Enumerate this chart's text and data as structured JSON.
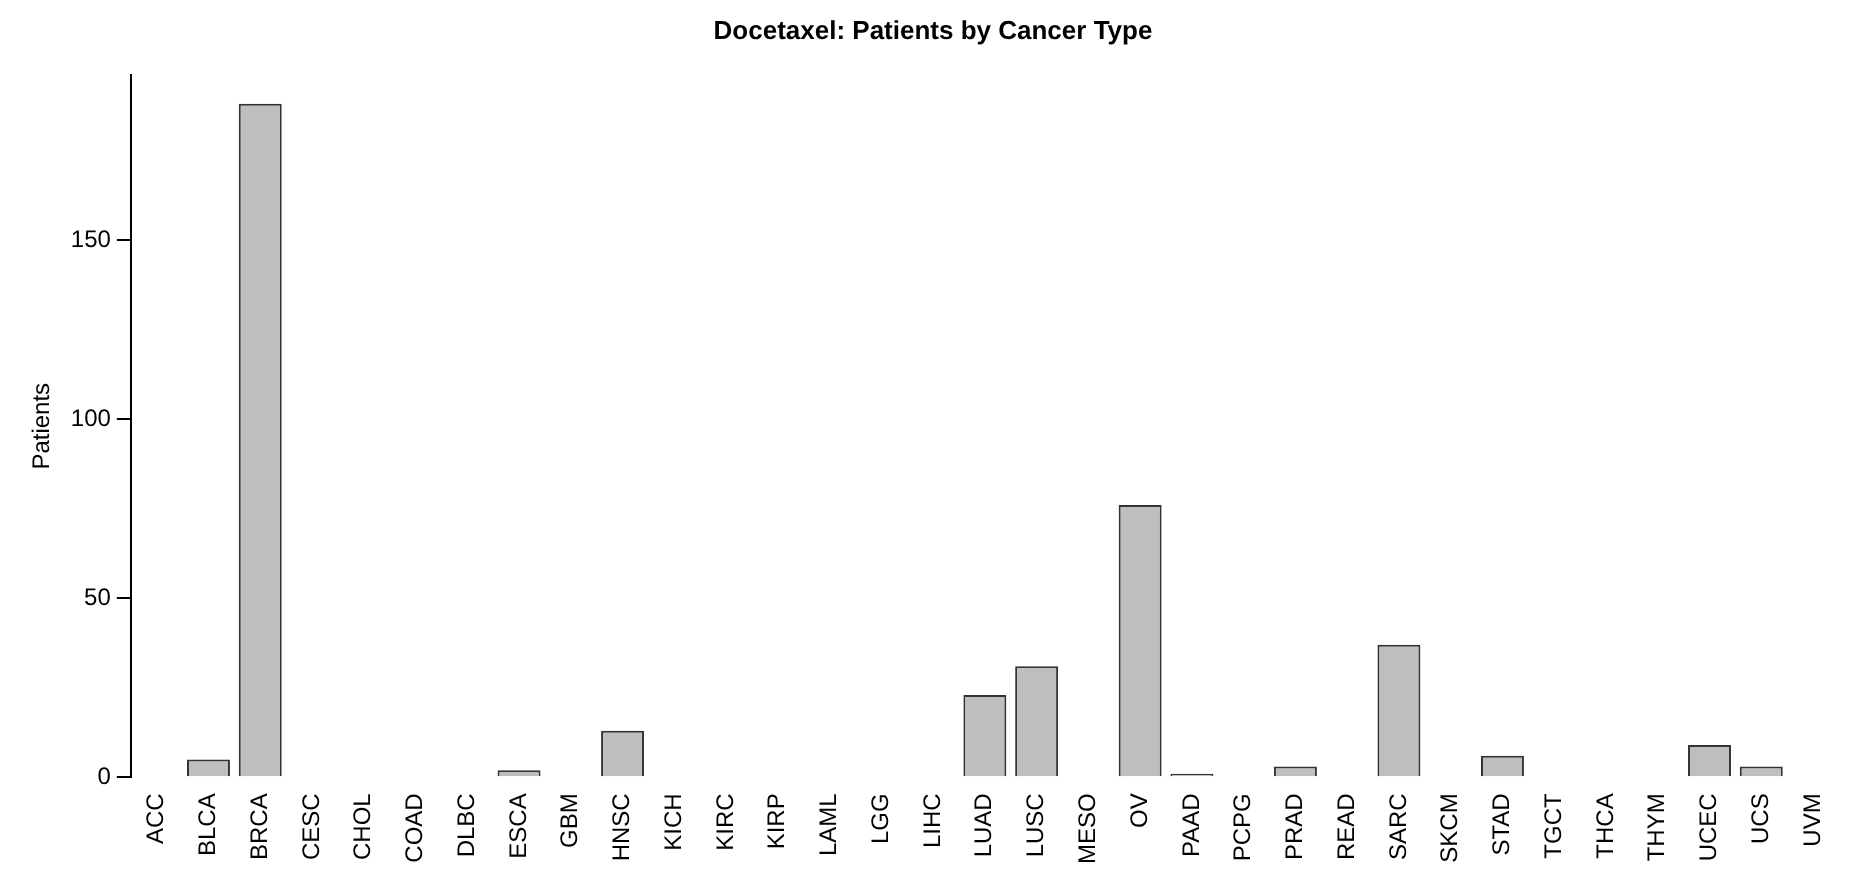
{
  "chart_data": {
    "type": "bar",
    "title": "Docetaxel: Patients by Cancer Type",
    "ylabel": "Patients",
    "categories": [
      "ACC",
      "BLCA",
      "BRCA",
      "CESC",
      "CHOL",
      "COAD",
      "DLBC",
      "ESCA",
      "GBM",
      "HNSC",
      "KICH",
      "KIRC",
      "KIRP",
      "LAML",
      "LGG",
      "LIHC",
      "LUAD",
      "LUSC",
      "MESO",
      "OV",
      "PAAD",
      "PCPG",
      "PRAD",
      "READ",
      "SARC",
      "SKCM",
      "STAD",
      "TGCT",
      "THCA",
      "THYM",
      "UCEC",
      "UCS",
      "UVM"
    ],
    "values": [
      0,
      5,
      188,
      0,
      0,
      0,
      0,
      2,
      0,
      13,
      0,
      0,
      0,
      0,
      0,
      0,
      23,
      31,
      0,
      76,
      1,
      0,
      3,
      0,
      37,
      0,
      6,
      0,
      0,
      0,
      9,
      3,
      0
    ],
    "color": "#bebebe",
    "ylim": [
      0,
      196
    ],
    "yticks": [
      0,
      50,
      100,
      150
    ],
    "grid": false,
    "legend": false
  }
}
